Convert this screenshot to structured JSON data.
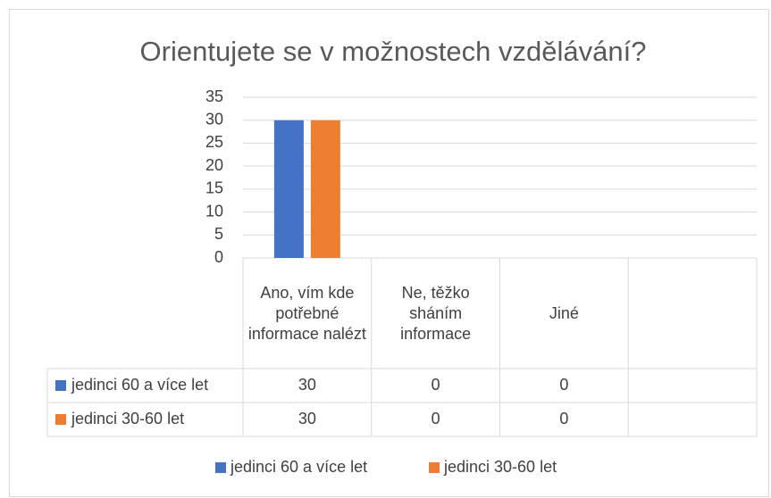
{
  "chart_data": {
    "type": "bar",
    "title": "Orientujete se v možnostech vzdělávání?",
    "categories": [
      "Ano, vím kde potřebné informace nalézt",
      "Ne, těžko sháním informace",
      "Jiné",
      null
    ],
    "series": [
      {
        "name": "jedinci 60 a více let",
        "color": "#4472c4",
        "values": [
          30,
          0,
          0,
          null
        ]
      },
      {
        "name": "jedinci 30-60 let",
        "color": "#ed7d31",
        "values": [
          30,
          0,
          0,
          null
        ]
      }
    ],
    "ylim": [
      0,
      35
    ],
    "yticks": [
      0,
      5,
      10,
      15,
      20,
      25,
      30,
      35
    ],
    "grid": true,
    "data_table": true,
    "legend": "bottom"
  }
}
